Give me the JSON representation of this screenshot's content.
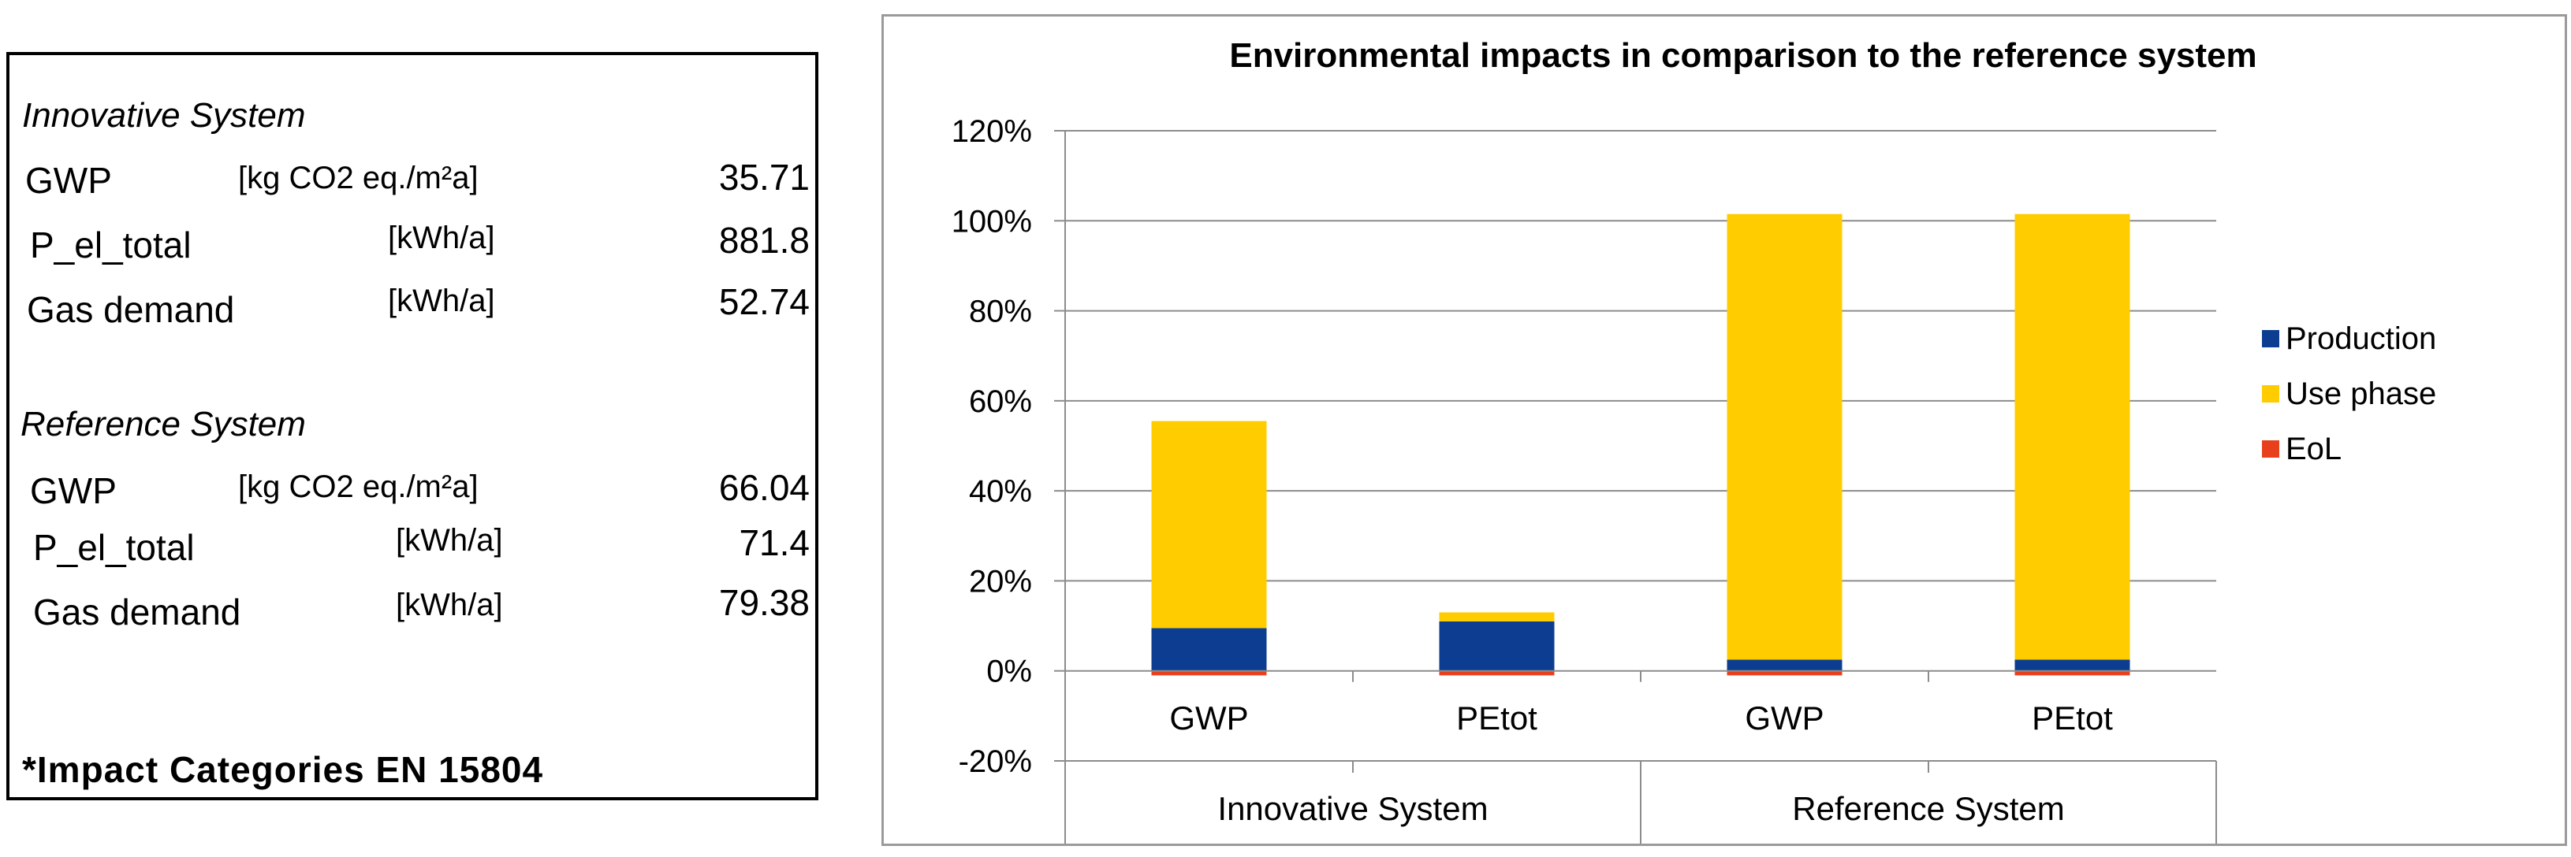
{
  "info": {
    "innovative": {
      "title": "Innovative System",
      "rows": [
        {
          "label": "GWP",
          "unit": "[kg CO2 eq./m²a]",
          "value": "35.71"
        },
        {
          "label": "P_el_total",
          "unit": "[kWh/a]",
          "value": "881.8"
        },
        {
          "label": "Gas demand",
          "unit": "[kWh/a]",
          "value": "52.74"
        }
      ]
    },
    "reference": {
      "title": "Reference System",
      "rows": [
        {
          "label": "GWP",
          "unit": "[kg CO2 eq./m²a]",
          "value": "66.04"
        },
        {
          "label": "P_el_total",
          "unit": "[kWh/a]",
          "value": "71.4"
        },
        {
          "label": "Gas demand",
          "unit": "[kWh/a]",
          "value": "79.38"
        }
      ]
    },
    "footnote": "*Impact Categories EN 15804"
  },
  "chart_data": {
    "type": "bar",
    "stacked": true,
    "title": "Environmental impacts in comparison to the reference system",
    "categories": [
      "GWP",
      "PEtot",
      "GWP",
      "PEtot"
    ],
    "groups": [
      {
        "label": "Innovative System",
        "span": 2
      },
      {
        "label": "Reference System",
        "span": 2
      }
    ],
    "series": [
      {
        "name": "Production",
        "color": "#0d3d91",
        "values": [
          9.5,
          11,
          2.5,
          2.5
        ]
      },
      {
        "name": "Use phase",
        "color": "#ffcc00",
        "values": [
          46,
          2,
          99,
          99
        ]
      },
      {
        "name": "EoL",
        "color": "#e8401c",
        "values": [
          -1,
          -1,
          -1,
          -1
        ]
      }
    ],
    "ylim": [
      -20,
      120
    ],
    "yticks": [
      -20,
      0,
      20,
      40,
      60,
      80,
      100,
      120
    ],
    "ytick_labels": [
      "-20%",
      "0%",
      "20%",
      "40%",
      "60%",
      "80%",
      "100%",
      "120%"
    ],
    "grid": true,
    "legend": "right",
    "xlabel": "",
    "ylabel": ""
  }
}
